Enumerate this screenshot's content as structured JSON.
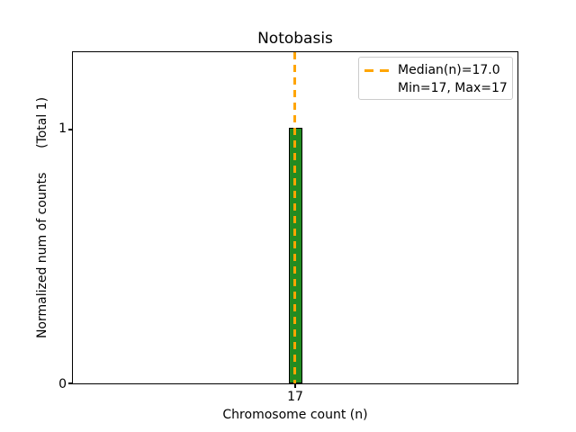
{
  "chart_data": {
    "type": "bar",
    "title": "Notobasis",
    "xlabel": "Chromosome count (n)",
    "ylabel": "Normalized num of counts      (Total 1)",
    "categories": [
      17
    ],
    "values": [
      1
    ],
    "total_counts": 1,
    "xtick_labels": [
      "17"
    ],
    "ytick_labels": [
      "0",
      "1"
    ],
    "ylim": [
      0,
      1.3
    ],
    "grid": false,
    "stats": {
      "median": 17.0,
      "min": 17,
      "max": 17
    },
    "legend": {
      "position": "upper right",
      "entries": [
        {
          "label": "Median(n)=17.0",
          "marker": "orange-dashed-line"
        },
        {
          "label": "Min=17, Max=17",
          "marker": "none"
        }
      ]
    },
    "colors": {
      "bar_fill": "#228B22",
      "bar_edge": "#000000",
      "median_line": "#FFA500",
      "legend_border": "#cccccc",
      "text": "#000000",
      "background": "#ffffff"
    }
  }
}
